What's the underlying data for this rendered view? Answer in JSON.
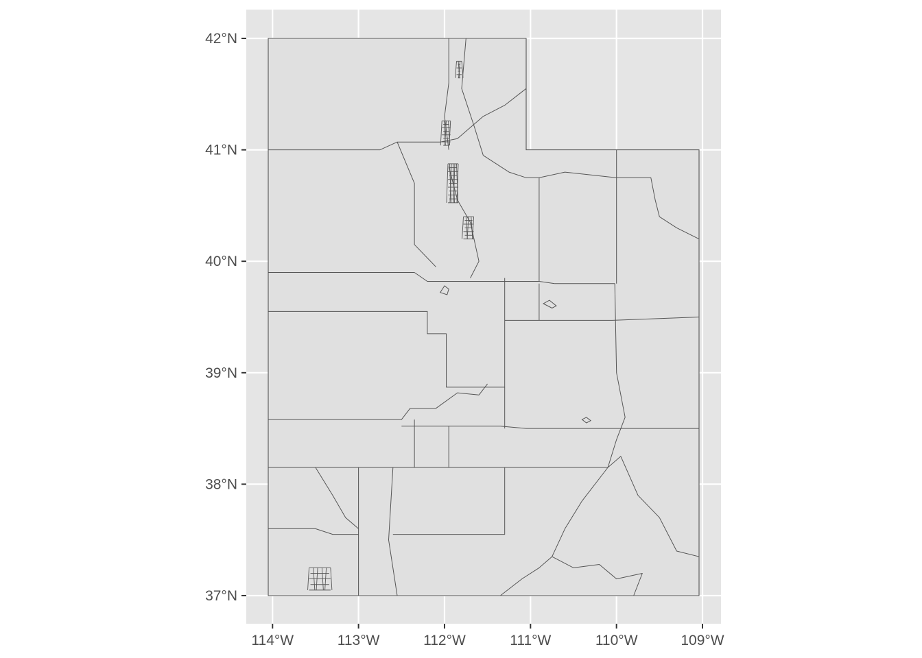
{
  "map": {
    "colors": {
      "panel_background": "#e5e5e5",
      "grid": "#ffffff",
      "region_fill": "#e0e0e0",
      "region_stroke": "#555555",
      "tick_text": "#4d4d4d",
      "tick_mark": "#333333"
    },
    "projection": {
      "lon_range": [
        -114.05,
        -109.04
      ],
      "lat_range": [
        37.0,
        42.0
      ]
    },
    "y_ticks": [
      {
        "value": 42,
        "label": "42°N"
      },
      {
        "value": 41,
        "label": "41°N"
      },
      {
        "value": 40,
        "label": "40°N"
      },
      {
        "value": 39,
        "label": "39°N"
      },
      {
        "value": 38,
        "label": "38°N"
      },
      {
        "value": 37,
        "label": "37°N"
      }
    ],
    "x_ticks": [
      {
        "value": -114,
        "label": "114°W"
      },
      {
        "value": -113,
        "label": "113°W"
      },
      {
        "value": -112,
        "label": "112°W"
      },
      {
        "value": -111,
        "label": "111°W"
      },
      {
        "value": -110,
        "label": "110°W"
      },
      {
        "value": -109,
        "label": "109°W"
      }
    ],
    "state_outline": [
      [
        -114.05,
        42.0
      ],
      [
        -111.05,
        42.0
      ],
      [
        -111.05,
        41.0
      ],
      [
        -109.04,
        41.0
      ],
      [
        -109.04,
        37.0
      ],
      [
        -114.05,
        37.0
      ],
      [
        -114.05,
        42.0
      ]
    ],
    "boundaries": [
      [
        [
          -114.05,
          41.0
        ],
        [
          -112.75,
          41.0
        ],
        [
          -112.55,
          41.07
        ],
        [
          -112.05,
          41.07
        ]
      ],
      [
        [
          -114.05,
          39.9
        ],
        [
          -112.35,
          39.9
        ]
      ],
      [
        [
          -112.35,
          39.9
        ],
        [
          -112.2,
          39.82
        ],
        [
          -111.75,
          39.82
        ],
        [
          -111.25,
          39.82
        ],
        [
          -110.9,
          39.82
        ],
        [
          -110.72,
          39.8
        ]
      ],
      [
        [
          -114.05,
          39.55
        ],
        [
          -112.2,
          39.55
        ],
        [
          -112.2,
          39.35
        ],
        [
          -111.98,
          39.35
        ],
        [
          -111.98,
          38.87
        ],
        [
          -111.3,
          38.87
        ]
      ],
      [
        [
          -114.05,
          38.58
        ],
        [
          -112.5,
          38.58
        ],
        [
          -112.4,
          38.68
        ],
        [
          -112.1,
          38.68
        ],
        [
          -111.85,
          38.82
        ],
        [
          -111.6,
          38.8
        ],
        [
          -111.5,
          38.9
        ]
      ],
      [
        [
          -114.05,
          38.15
        ],
        [
          -110.1,
          38.15
        ]
      ],
      [
        [
          -112.5,
          38.52
        ],
        [
          -111.35,
          38.52
        ],
        [
          -111.05,
          38.5
        ],
        [
          -109.04,
          38.5
        ]
      ],
      [
        [
          -111.3,
          39.85
        ],
        [
          -111.3,
          38.5
        ]
      ],
      [
        [
          -111.3,
          39.47
        ],
        [
          -110.05,
          39.47
        ],
        [
          -109.04,
          39.5
        ]
      ],
      [
        [
          -110.9,
          39.8
        ],
        [
          -110.9,
          39.47
        ]
      ],
      [
        [
          -110.72,
          39.8
        ],
        [
          -110.02,
          39.8
        ],
        [
          -110.0,
          39.0
        ],
        [
          -109.9,
          38.6
        ],
        [
          -110.0,
          38.4
        ],
        [
          -110.1,
          38.15
        ]
      ],
      [
        [
          -110.1,
          38.15
        ],
        [
          -109.95,
          38.25
        ],
        [
          -109.75,
          37.9
        ],
        [
          -109.5,
          37.7
        ],
        [
          -109.3,
          37.4
        ],
        [
          -109.04,
          37.35
        ]
      ],
      [
        [
          -110.1,
          38.15
        ],
        [
          -110.4,
          37.85
        ],
        [
          -110.6,
          37.6
        ],
        [
          -110.75,
          37.35
        ],
        [
          -110.9,
          37.25
        ],
        [
          -111.1,
          37.15
        ],
        [
          -111.35,
          37.0
        ]
      ],
      [
        [
          -110.75,
          37.35
        ],
        [
          -110.5,
          37.25
        ],
        [
          -110.2,
          37.28
        ],
        [
          -110.0,
          37.15
        ],
        [
          -109.7,
          37.2
        ],
        [
          -109.8,
          37.0
        ]
      ],
      [
        [
          -112.05,
          41.07
        ],
        [
          -111.85,
          41.1
        ],
        [
          -111.55,
          41.3
        ],
        [
          -111.3,
          41.4
        ],
        [
          -111.05,
          41.55
        ]
      ],
      [
        [
          -112.55,
          41.07
        ],
        [
          -112.35,
          40.7
        ],
        [
          -112.35,
          40.15
        ],
        [
          -112.1,
          39.95
        ]
      ],
      [
        [
          -111.95,
          42.0
        ],
        [
          -111.95,
          41.6
        ],
        [
          -112.0,
          41.3
        ],
        [
          -111.95,
          41.0
        ]
      ],
      [
        [
          -111.75,
          42.0
        ],
        [
          -111.8,
          41.55
        ],
        [
          -111.65,
          41.2
        ],
        [
          -111.55,
          40.95
        ]
      ],
      [
        [
          -111.95,
          40.85
        ],
        [
          -111.85,
          40.55
        ],
        [
          -111.7,
          40.35
        ],
        [
          -111.6,
          40.0
        ],
        [
          -111.7,
          39.85
        ]
      ],
      [
        [
          -111.55,
          40.95
        ],
        [
          -111.25,
          40.8
        ],
        [
          -111.05,
          40.75
        ],
        [
          -110.9,
          40.75
        ],
        [
          -110.9,
          39.82
        ]
      ],
      [
        [
          -110.9,
          40.75
        ],
        [
          -110.6,
          40.8
        ],
        [
          -110.0,
          40.75
        ],
        [
          -110.0,
          39.8
        ]
      ],
      [
        [
          -110.0,
          41.0
        ],
        [
          -110.0,
          40.75
        ]
      ],
      [
        [
          -110.0,
          40.75
        ],
        [
          -109.6,
          40.75
        ],
        [
          -109.55,
          40.55
        ],
        [
          -109.5,
          40.4
        ],
        [
          -109.3,
          40.3
        ],
        [
          -109.04,
          40.2
        ]
      ],
      [
        [
          -113.0,
          38.15
        ],
        [
          -113.0,
          37.0
        ]
      ],
      [
        [
          -112.6,
          38.15
        ],
        [
          -112.65,
          37.5
        ],
        [
          -112.55,
          37.0
        ]
      ],
      [
        [
          -112.6,
          37.55
        ],
        [
          -111.3,
          37.55
        ],
        [
          -111.3,
          38.15
        ]
      ],
      [
        [
          -114.05,
          37.6
        ],
        [
          -113.5,
          37.6
        ],
        [
          -113.3,
          37.55
        ],
        [
          -113.0,
          37.55
        ]
      ],
      [
        [
          -113.5,
          38.15
        ],
        [
          -113.3,
          37.9
        ],
        [
          -113.15,
          37.7
        ],
        [
          -113.0,
          37.6
        ]
      ],
      [
        [
          -112.35,
          38.15
        ],
        [
          -112.35,
          38.58
        ]
      ],
      [
        [
          -111.95,
          38.52
        ],
        [
          -111.95,
          38.15
        ]
      ]
    ],
    "islands": [
      [
        [
          -112.05,
          39.72
        ],
        [
          -111.97,
          39.7
        ],
        [
          -111.95,
          39.75
        ],
        [
          -112.0,
          39.78
        ],
        [
          -112.05,
          39.72
        ]
      ],
      [
        [
          -110.4,
          38.58
        ],
        [
          -110.35,
          38.55
        ],
        [
          -110.3,
          38.57
        ],
        [
          -110.35,
          38.6
        ],
        [
          -110.4,
          38.58
        ]
      ],
      [
        [
          -110.85,
          39.62
        ],
        [
          -110.75,
          39.58
        ],
        [
          -110.7,
          39.6
        ],
        [
          -110.78,
          39.65
        ],
        [
          -110.85,
          39.62
        ]
      ]
    ],
    "urban_clusters": [
      {
        "lon": -111.9,
        "lat": 40.7,
        "span_lon": 0.12,
        "span_lat": 0.35,
        "rows": 10,
        "cols": 6
      },
      {
        "lon": -111.98,
        "lat": 41.15,
        "span_lon": 0.1,
        "span_lat": 0.22,
        "rows": 7,
        "cols": 4
      },
      {
        "lon": -111.72,
        "lat": 40.3,
        "span_lon": 0.12,
        "span_lat": 0.2,
        "rows": 6,
        "cols": 4
      },
      {
        "lon": -111.83,
        "lat": 41.72,
        "span_lon": 0.06,
        "span_lat": 0.15,
        "rows": 5,
        "cols": 3
      },
      {
        "lon": -113.45,
        "lat": 37.15,
        "span_lon": 0.25,
        "span_lat": 0.2,
        "rows": 4,
        "cols": 5
      }
    ]
  }
}
